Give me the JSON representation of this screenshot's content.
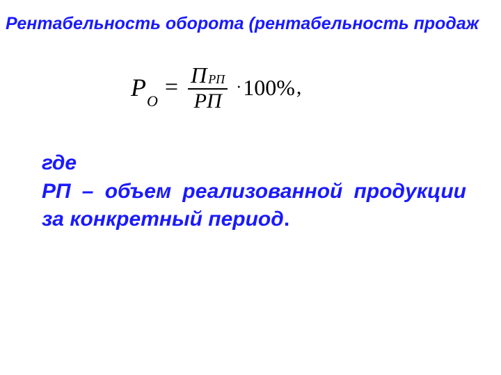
{
  "heading": {
    "text": "Рентабельность оборота (рентабельность продаж",
    "fontsize": 25,
    "color": "#1a1aff"
  },
  "formula": {
    "lhs_symbol": "Р",
    "lhs_subscript": "О",
    "equals": "=",
    "numerator_symbol": "П",
    "numerator_subscript": "РП",
    "denominator": "РП",
    "cdot": "·",
    "multiplier": "100",
    "percent": "%",
    "trailing_comma": ",",
    "color": "#000000"
  },
  "explanation": {
    "line_gde": "где",
    "body": "РП – объем реализованной продукции за конкретный период",
    "period": ".",
    "fontsize": 30,
    "color": "#1a1aff"
  },
  "background_color": "#ffffff"
}
